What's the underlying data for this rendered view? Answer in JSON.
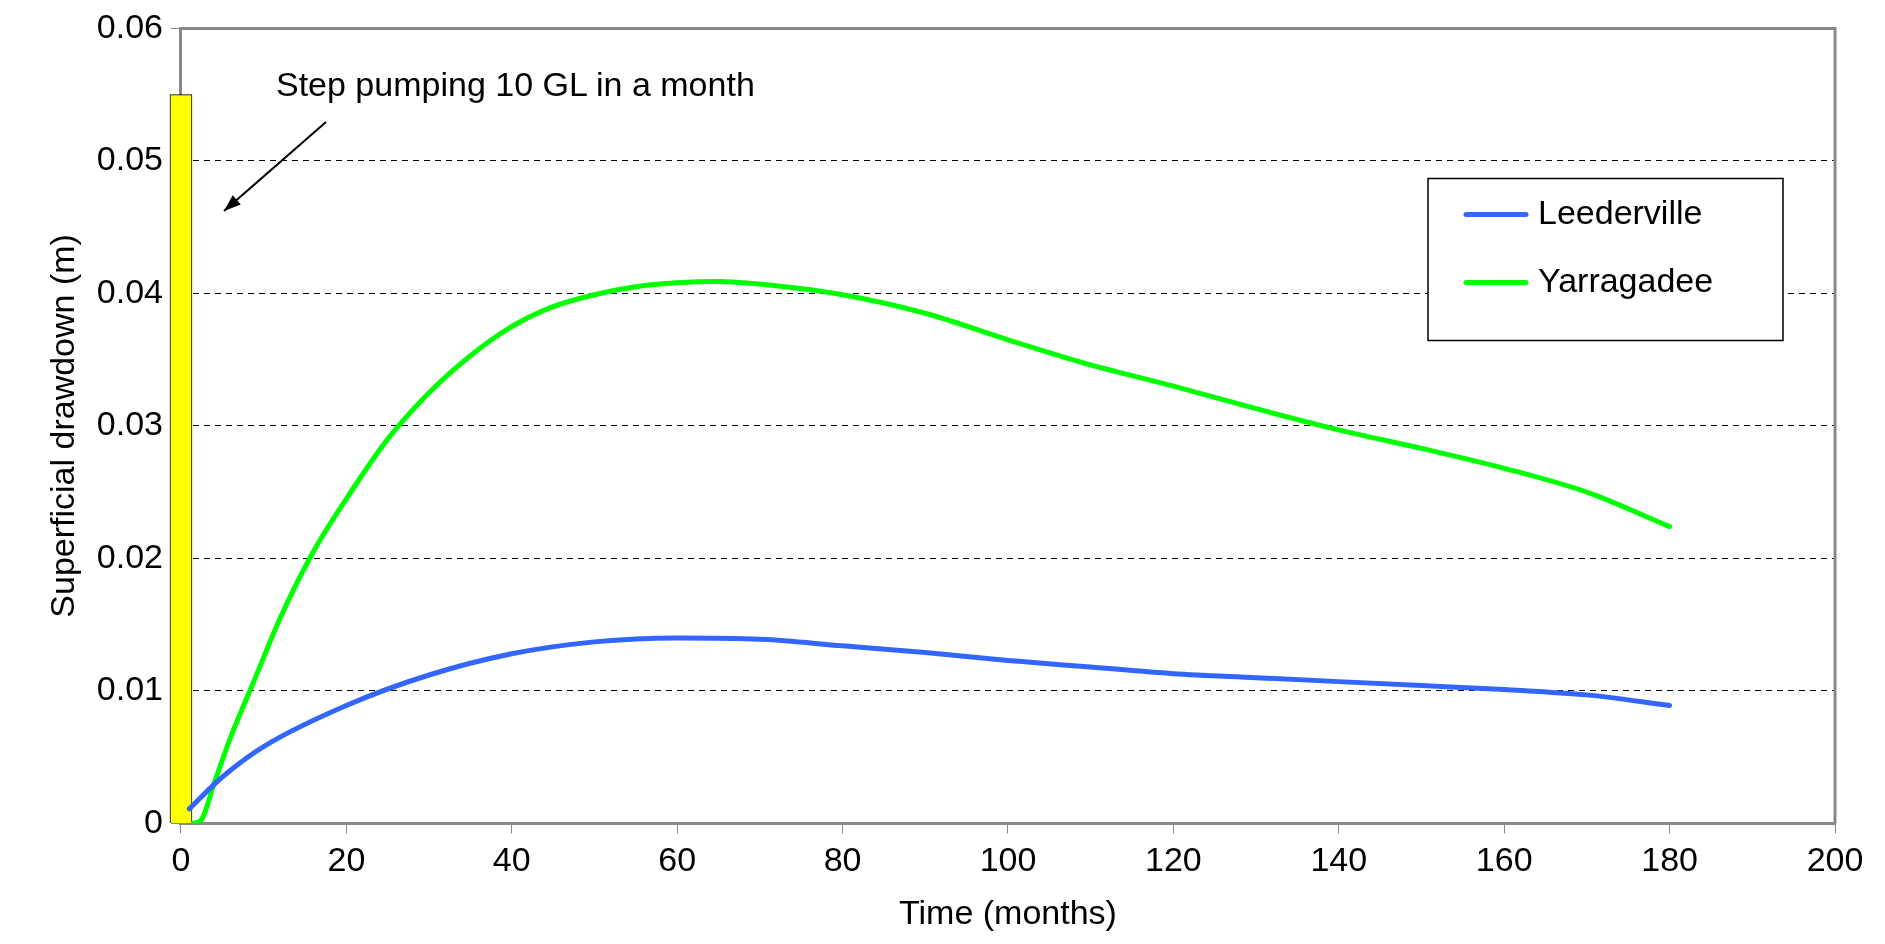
{
  "chart_data": {
    "type": "line",
    "xlabel": "Time (months)",
    "ylabel": "Superficial drawdown (m)",
    "xlim": [
      0,
      200
    ],
    "xticks": [
      0,
      20,
      40,
      60,
      80,
      100,
      120,
      140,
      160,
      180,
      200
    ],
    "ylim": [
      0,
      0.06
    ],
    "yticks": [
      0,
      0.01,
      0.02,
      0.03,
      0.04,
      0.05,
      0.06
    ],
    "grid": "y",
    "legend": "top right",
    "line_style": "solid",
    "marker": "none",
    "annotations": [
      "Step pumping 10 GL in a month"
    ],
    "series": [
      {
        "type": "bar",
        "color": "#ffff00",
        "x": [
          0
        ],
        "values": [
          0.055
        ]
      },
      {
        "name": "Leederville",
        "color": "#3366ff",
        "x": [
          1,
          5,
          10,
          20,
          30,
          40,
          50,
          60,
          70,
          80,
          90,
          100,
          110,
          120,
          130,
          140,
          150,
          160,
          170,
          180
        ],
        "values": [
          0.0011,
          0.0035,
          0.0058,
          0.0089,
          0.0112,
          0.0128,
          0.0137,
          0.014,
          0.0139,
          0.0134,
          0.0129,
          0.0123,
          0.0118,
          0.0113,
          0.011,
          0.0107,
          0.0104,
          0.0101,
          0.0097,
          0.0089
        ]
      },
      {
        "name": "Yarragadee",
        "color": "#00ff00",
        "x": [
          1.5,
          2.5,
          4,
          6,
          9,
          12,
          16,
          20,
          25,
          30,
          35,
          40,
          45,
          50,
          55,
          60,
          65,
          70,
          80,
          90,
          100,
          110,
          120,
          130,
          140,
          150,
          160,
          170,
          180
        ],
        "values": [
          0,
          0.0003,
          0.003,
          0.0065,
          0.011,
          0.0155,
          0.0205,
          0.0245,
          0.029,
          0.0325,
          0.0353,
          0.0375,
          0.039,
          0.0399,
          0.0405,
          0.0408,
          0.0409,
          0.0407,
          0.0399,
          0.0385,
          0.0365,
          0.0346,
          0.033,
          0.0313,
          0.0297,
          0.0283,
          0.0268,
          0.025,
          0.0224
        ]
      }
    ]
  }
}
